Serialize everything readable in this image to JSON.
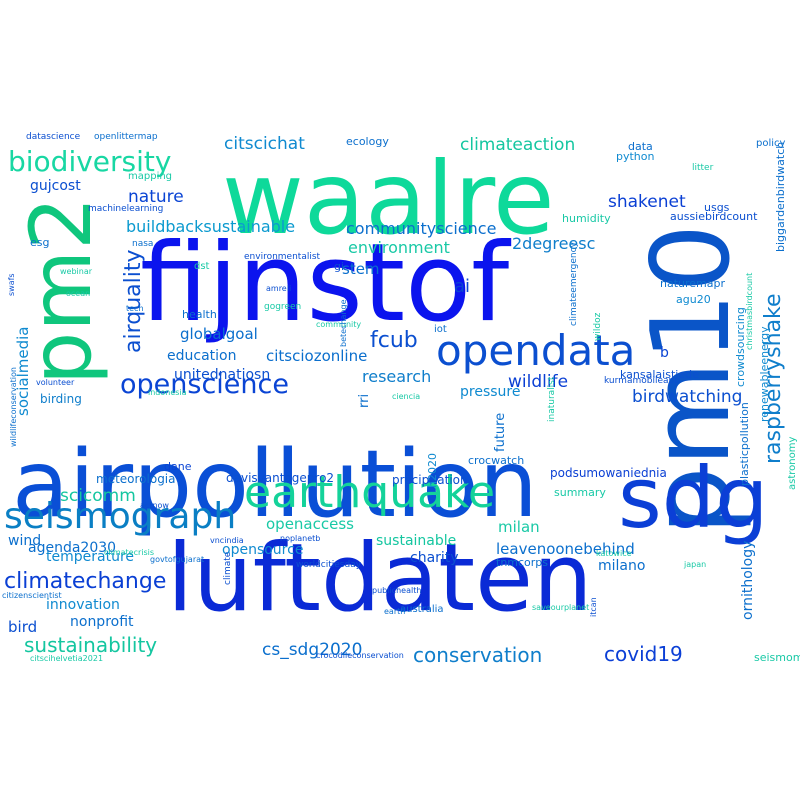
{
  "words": [
    {
      "text": "airpollution",
      "color": "#0a4fd6"
    },
    {
      "text": "luftdaten",
      "color": "#0a2ad6"
    },
    {
      "text": "fijnstof",
      "color": "#0b14ee"
    },
    {
      "text": "waalre",
      "color": "#0ed99a"
    },
    {
      "text": "pm10",
      "color": "#0a55c8"
    },
    {
      "text": "pm2",
      "color": "#0fc67d"
    },
    {
      "text": "sdg",
      "color": "#0b3fd6"
    },
    {
      "text": "earthquake",
      "color": "#14d29a"
    },
    {
      "text": "seismograph",
      "color": "#0a7fc4"
    },
    {
      "text": "opendata",
      "color": "#0b4fd0"
    },
    {
      "text": "openscience",
      "color": "#0a44d4"
    },
    {
      "text": "biodiversity",
      "color": "#18d7a3"
    },
    {
      "text": "raspberryshake",
      "color": "#0f7ecb"
    },
    {
      "text": "airquality",
      "color": "#0b4fd0"
    },
    {
      "text": "climatechange",
      "color": "#0a3fd4"
    },
    {
      "text": "sustainability",
      "color": "#14c6a0"
    },
    {
      "text": "conservation",
      "color": "#0f7ecb"
    },
    {
      "text": "covid19",
      "color": "#0b3fd6"
    },
    {
      "text": "cs_sdg2020",
      "color": "#0b6fcd"
    },
    {
      "text": "fcub",
      "color": "#0b4fd0"
    },
    {
      "text": "citscichat",
      "color": "#0f8ad0"
    },
    {
      "text": "climateaction",
      "color": "#14c6a0"
    },
    {
      "text": "shakenet",
      "color": "#0a3fd4"
    },
    {
      "text": "nature",
      "color": "#0a44d4"
    },
    {
      "text": "buildbacksustainable",
      "color": "#0b9acf"
    },
    {
      "text": "communityscience",
      "color": "#0b6fcd"
    },
    {
      "text": "environment",
      "color": "#19c9a6"
    },
    {
      "text": "2degreesc",
      "color": "#0f7ecb"
    },
    {
      "text": "gujcost",
      "color": "#0b4fd0"
    },
    {
      "text": "ai",
      "color": "#0a44d4"
    },
    {
      "text": "stem",
      "color": "#0b6fcd"
    },
    {
      "text": "socialmedia",
      "color": "#0f8ad0"
    },
    {
      "text": "globalgoal",
      "color": "#0b6fcd"
    },
    {
      "text": "citsciozonline",
      "color": "#0b6fcd"
    },
    {
      "text": "education",
      "color": "#0b6fcd"
    },
    {
      "text": "research",
      "color": "#0f7ecb"
    },
    {
      "text": "wildlife",
      "color": "#0a3fd4"
    },
    {
      "text": "pressure",
      "color": "#0f8ad0"
    },
    {
      "text": "birdwatching",
      "color": "#0b4fd0"
    },
    {
      "text": "unitednatiosn",
      "color": "#0b4fd0"
    },
    {
      "text": "b",
      "color": "#0a44d4"
    },
    {
      "text": "scicomm",
      "color": "#14c6a0"
    },
    {
      "text": "openaccess",
      "color": "#19c9a6"
    },
    {
      "text": "milan",
      "color": "#19c9a6"
    },
    {
      "text": "sustainable",
      "color": "#14c6a0"
    },
    {
      "text": "leavenoonebehind",
      "color": "#0b6fcd"
    },
    {
      "text": "agenda2030",
      "color": "#0b6fcd"
    },
    {
      "text": "temperature",
      "color": "#0f8ad0"
    },
    {
      "text": "opensource",
      "color": "#0f8ad0"
    },
    {
      "text": "charity",
      "color": "#0b4fd0"
    },
    {
      "text": "milano",
      "color": "#0b6fcd"
    },
    {
      "text": "innovation",
      "color": "#0f8ad0"
    },
    {
      "text": "bird",
      "color": "#0b4fd0"
    },
    {
      "text": "nonprofit",
      "color": "#0b6fcd"
    },
    {
      "text": "ornithology",
      "color": "#0b6fcd"
    },
    {
      "text": "wind",
      "color": "#0b6fcd"
    },
    {
      "text": "meteorologia",
      "color": "#0b6fcd"
    },
    {
      "text": "davisvantagepro2",
      "color": "#0b4fd0"
    },
    {
      "text": "precipitation",
      "color": "#0b4fd0"
    },
    {
      "text": "podsumowaniednia",
      "color": "#0a3fd4"
    },
    {
      "text": "dane",
      "color": "#0a44d4"
    },
    {
      "text": "birding",
      "color": "#0f7ecb"
    },
    {
      "text": "rri",
      "color": "#0b6fcd"
    },
    {
      "text": "future",
      "color": "#0b6fcd"
    },
    {
      "text": "h2020",
      "color": "#0f8ad0"
    },
    {
      "text": "crocwatch",
      "color": "#0b6fcd"
    },
    {
      "text": "summary",
      "color": "#19c9a6"
    },
    {
      "text": "tnmcorps",
      "color": "#0b6fcd"
    },
    {
      "text": "plasticpollution",
      "color": "#0b6fcd"
    },
    {
      "text": "crowdsourcing",
      "color": "#0f8ad0"
    },
    {
      "text": "renewableenergy",
      "color": "#0f8ad0"
    },
    {
      "text": "biggardenbirdwatch",
      "color": "#0b6fcd"
    },
    {
      "text": "aussiebirdcount",
      "color": "#0b4fd0"
    },
    {
      "text": "naturemapr",
      "color": "#0b6fcd"
    },
    {
      "text": "agu20",
      "color": "#0f8ad0"
    },
    {
      "text": "humidity",
      "color": "#19c9a6"
    },
    {
      "text": "ecology",
      "color": "#0b6fcd"
    },
    {
      "text": "data",
      "color": "#0b6fcd"
    },
    {
      "text": "python",
      "color": "#0f8ad0"
    },
    {
      "text": "usgs",
      "color": "#0b4fd0"
    },
    {
      "text": "policy",
      "color": "#0b6fcd"
    },
    {
      "text": "litter",
      "color": "#19c9a6"
    },
    {
      "text": "datascience",
      "color": "#0b4fd0"
    },
    {
      "text": "openlittermap",
      "color": "#0b6fcd"
    },
    {
      "text": "mapping",
      "color": "#19c9a6"
    },
    {
      "text": "machinelearning",
      "color": "#0b4fd0"
    },
    {
      "text": "esg",
      "color": "#0b6fcd"
    },
    {
      "text": "nasa",
      "color": "#0b6fcd"
    },
    {
      "text": "environmentalist",
      "color": "#0b4fd0"
    },
    {
      "text": "dst",
      "color": "#19c9a6"
    },
    {
      "text": "gi",
      "color": "#0b4fd0"
    },
    {
      "text": "webinar",
      "color": "#19c9a6"
    },
    {
      "text": "ocean",
      "color": "#19c9a6"
    },
    {
      "text": "tech",
      "color": "#0b6fcd"
    },
    {
      "text": "health",
      "color": "#0b6fcd"
    },
    {
      "text": "gogreen",
      "color": "#19c9a6"
    },
    {
      "text": "amreli",
      "color": "#0b4fd0"
    },
    {
      "text": "community",
      "color": "#19c9a6"
    },
    {
      "text": "betechange",
      "color": "#0b6fcd"
    },
    {
      "text": "iot",
      "color": "#0b6fcd"
    },
    {
      "text": "inaturalist",
      "color": "#19c9a6"
    },
    {
      "text": "kansalaistiede",
      "color": "#0b4fd0"
    },
    {
      "text": "wildoz",
      "color": "#19c9a6"
    },
    {
      "text": "climateemergency",
      "color": "#0b6fcd"
    },
    {
      "text": "kurmamobileapp",
      "color": "#0b4fd0"
    },
    {
      "text": "volunteer",
      "color": "#0b4fd0"
    },
    {
      "text": "indonesia",
      "color": "#19c9a6"
    },
    {
      "text": "ciencia",
      "color": "#19c9a6"
    },
    {
      "text": "swafs",
      "color": "#0b4fd0"
    },
    {
      "text": "wildlifeconservation",
      "color": "#0b6fcd"
    },
    {
      "text": "christmasbirdcount",
      "color": "#19c9a6"
    },
    {
      "text": "katowice",
      "color": "#19c9a6"
    },
    {
      "text": "actnow",
      "color": "#0b4fd0"
    },
    {
      "text": "climatecrisis",
      "color": "#19c9a6"
    },
    {
      "text": "vncindia",
      "color": "#0b4fd0"
    },
    {
      "text": "noplanetb",
      "color": "#0b4fd0"
    },
    {
      "text": "worldcitiesday",
      "color": "#0b4fd0"
    },
    {
      "text": "climate",
      "color": "#0b4fd0"
    },
    {
      "text": "govtofgujarat",
      "color": "#0b6fcd"
    },
    {
      "text": "publichealth",
      "color": "#0b4fd0"
    },
    {
      "text": "japan",
      "color": "#19c9a6"
    },
    {
      "text": "astronomy",
      "color": "#19c9a6"
    },
    {
      "text": "citizenscientist",
      "color": "#0b6fcd"
    },
    {
      "text": "earth",
      "color": "#0b6fcd"
    },
    {
      "text": "itcan",
      "color": "#0b4fd0"
    },
    {
      "text": "saveourplanet",
      "color": "#19c9a6"
    },
    {
      "text": "australia",
      "color": "#0b6fcd"
    },
    {
      "text": "citscihelvetia2021",
      "color": "#19c9a6"
    },
    {
      "text": "crocodileconservation",
      "color": "#0b4fd0"
    },
    {
      "text": "seismometer",
      "color": "#19c9a6"
    },
    {
      "text": "pollution",
      "color": "#0b4fd0"
    }
  ]
}
